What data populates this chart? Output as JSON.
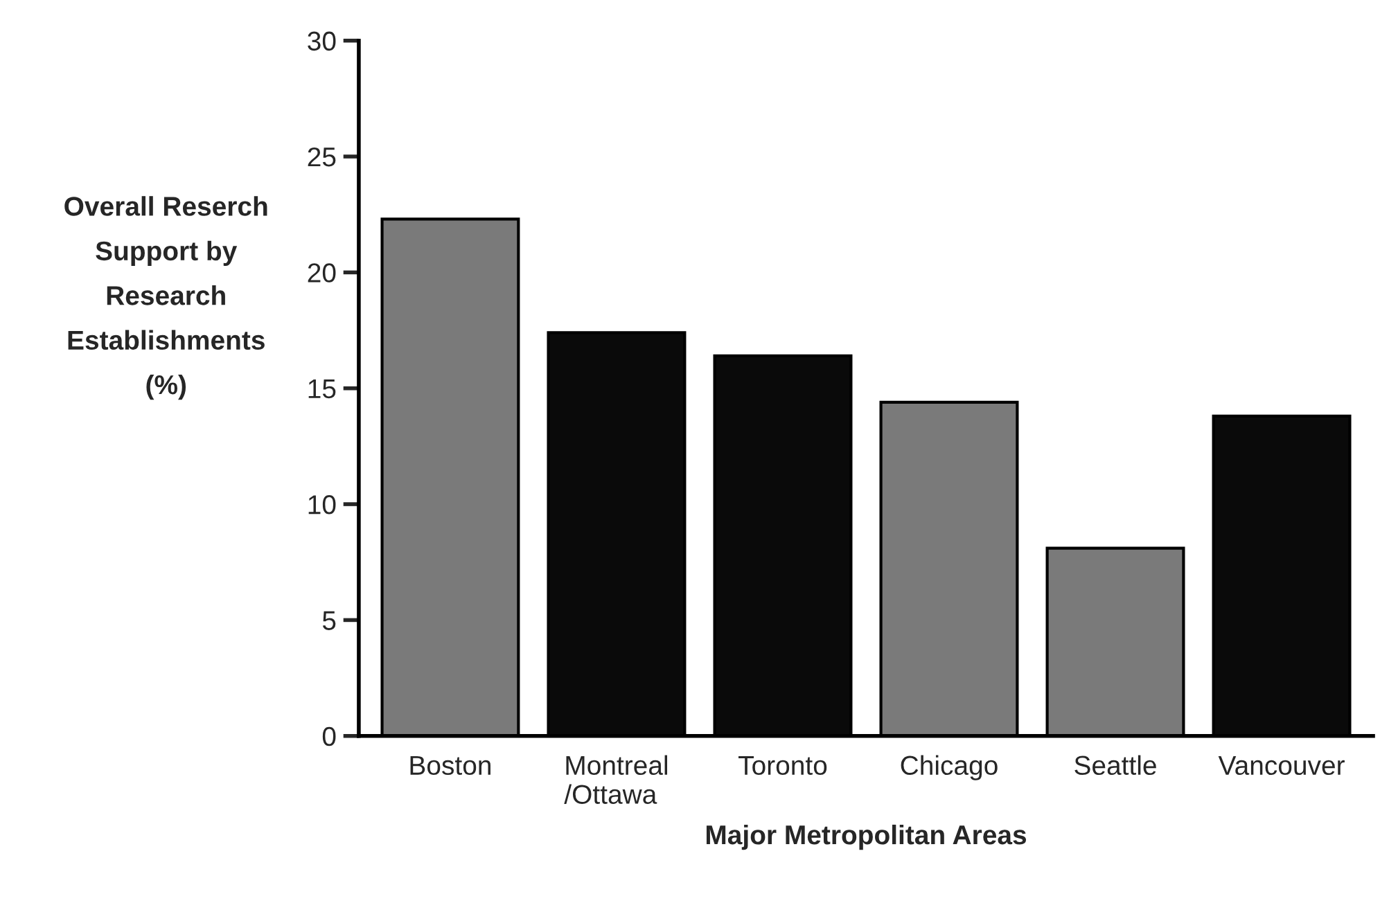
{
  "chart_data": {
    "type": "bar",
    "categories": [
      "Boston",
      "Montreal\n/Ottawa",
      "Toronto",
      "Chicago",
      "Seattle",
      "Vancouver"
    ],
    "values": [
      22.3,
      17.4,
      16.4,
      14.4,
      8.1,
      13.8
    ],
    "colors": [
      "#7a7a7a",
      "#0a0a0a",
      "#0a0a0a",
      "#7a7a7a",
      "#7a7a7a",
      "#0a0a0a"
    ],
    "xlabel": "Major Metropolitan Areas",
    "ylabel": "Overall Reserch\nSupport by\nResearch\nEstablishments\n(%)",
    "ylim": [
      0,
      30
    ],
    "yticks": [
      0,
      5,
      10,
      15,
      20,
      25,
      30
    ],
    "grid": false,
    "legend": false
  }
}
